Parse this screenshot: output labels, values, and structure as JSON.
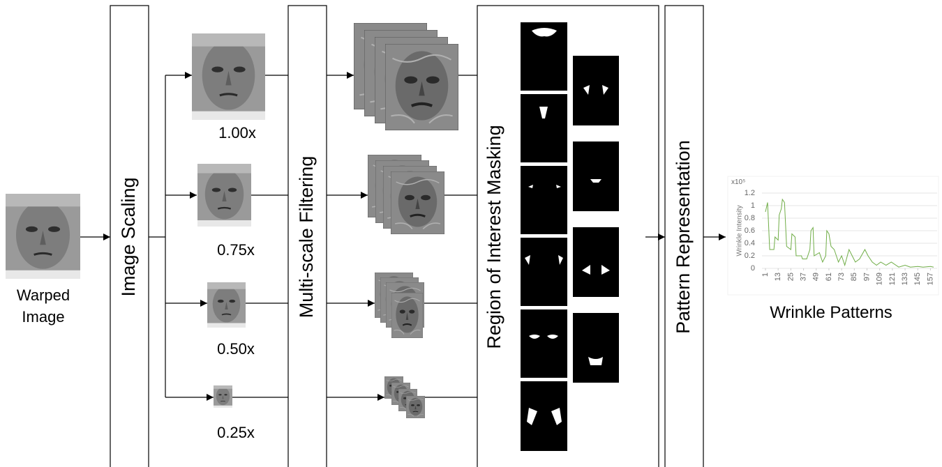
{
  "input": {
    "label": [
      "Warped",
      "Image"
    ]
  },
  "stages": [
    "Image Scaling",
    "Multi-scale Filtering",
    "Region of Interest Masking",
    "Pattern Representation"
  ],
  "scales": [
    "1.00x",
    "0.75x",
    "0.50x",
    "0.25x"
  ],
  "output": {
    "label": "Wrinkle Patterns"
  },
  "chart_data": {
    "type": "line",
    "y_label": "Wrinkle Intensity",
    "y_multiplier": "x10⁵",
    "color": "#70ad47",
    "grid": true,
    "x": [
      1,
      3,
      5,
      9,
      10,
      13,
      14,
      16,
      17,
      19,
      21,
      25,
      26,
      29,
      30,
      35,
      36,
      40,
      43,
      44,
      46,
      47,
      52,
      55,
      58,
      59,
      61,
      63,
      66,
      70,
      73,
      76,
      80,
      83,
      86,
      90,
      95,
      98,
      102,
      106,
      110,
      115,
      120,
      127,
      133,
      138,
      145,
      150,
      157,
      160
    ],
    "values": [
      0.9,
      1.05,
      0.3,
      0.3,
      0.5,
      0.45,
      0.85,
      0.95,
      1.1,
      1.05,
      0.35,
      0.3,
      0.55,
      0.5,
      0.2,
      0.2,
      0.15,
      0.15,
      0.3,
      0.6,
      0.65,
      0.2,
      0.25,
      0.1,
      0.2,
      0.6,
      0.55,
      0.35,
      0.3,
      0.1,
      0.2,
      0.05,
      0.3,
      0.2,
      0.1,
      0.15,
      0.3,
      0.2,
      0.1,
      0.05,
      0.1,
      0.05,
      0.1,
      0.02,
      0.05,
      0.02,
      0.03,
      0.02,
      0.03,
      0.02
    ],
    "xlim": [
      1,
      160
    ],
    "ylim": [
      0,
      1.2
    ],
    "xticks": [
      1,
      13,
      25,
      37,
      49,
      61,
      73,
      85,
      97,
      109,
      121,
      133,
      145,
      157
    ],
    "yticks": [
      0,
      0.2,
      0.4,
      0.6,
      0.8,
      1,
      1.2
    ]
  }
}
